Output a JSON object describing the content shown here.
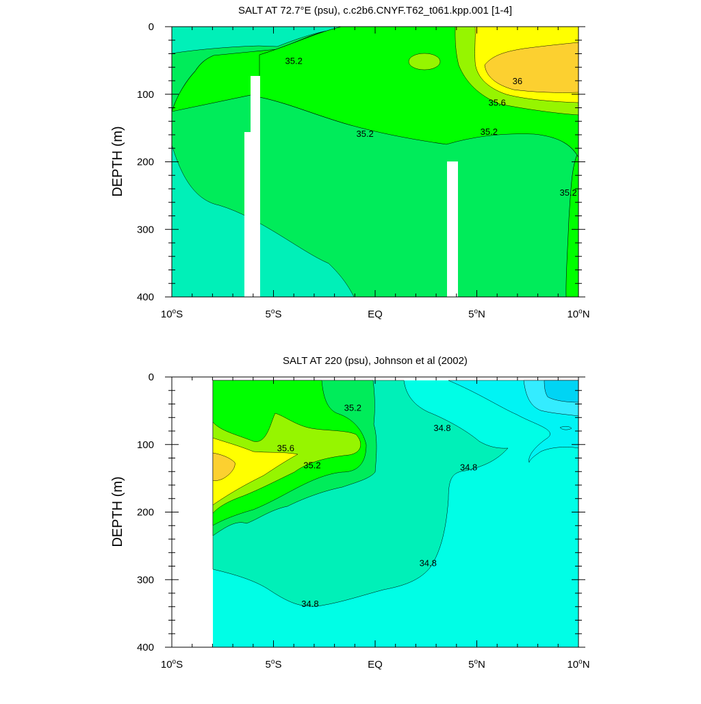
{
  "chart_data": [
    {
      "type": "contour",
      "title": "SALT AT  72.7°E (psu), c.c2b6.CNYF.T62_t061.kpp.001 [1-4]",
      "ylabel": "DEPTH (m)",
      "xlim": [
        -10,
        10
      ],
      "ylim": [
        400,
        0
      ],
      "x_ticks": [
        -10,
        -5,
        0,
        5,
        10
      ],
      "x_tick_labels": [
        "10°S",
        "5°S",
        "EQ",
        "5°N",
        "10°N"
      ],
      "y_ticks": [
        0,
        100,
        200,
        300,
        400
      ],
      "y_tick_labels": [
        "0",
        "100",
        "200",
        "300",
        "400"
      ],
      "contour_labels": [
        {
          "text": "35.2",
          "x": -4.0,
          "depth": 50
        },
        {
          "text": "36",
          "x": 7.0,
          "depth": 80
        },
        {
          "text": "35.6",
          "x": 6.0,
          "depth": 112
        },
        {
          "text": "35.2",
          "x": -0.5,
          "depth": 158
        },
        {
          "text": "35.2",
          "x": 5.6,
          "depth": 155
        },
        {
          "text": "35.2",
          "x": 9.5,
          "depth": 245
        }
      ]
    },
    {
      "type": "contour",
      "title": "SALT AT 220 (psu), Johnson et al (2002)",
      "ylabel": "DEPTH (m)",
      "xlim": [
        -10,
        10
      ],
      "ylim": [
        400,
        0
      ],
      "x_ticks": [
        -10,
        -5,
        0,
        5,
        10
      ],
      "x_tick_labels": [
        "10°S",
        "5°S",
        "EQ",
        "5°N",
        "10°N"
      ],
      "y_ticks": [
        0,
        100,
        200,
        300,
        400
      ],
      "y_tick_labels": [
        "0",
        "100",
        "200",
        "300",
        "400"
      ],
      "contour_labels": [
        {
          "text": "35.2",
          "x": -1.1,
          "depth": 45
        },
        {
          "text": "34.8",
          "x": 3.3,
          "depth": 75
        },
        {
          "text": "35.6",
          "x": -4.4,
          "depth": 105
        },
        {
          "text": "35.2",
          "x": -3.1,
          "depth": 130
        },
        {
          "text": "34.8",
          "x": 4.6,
          "depth": 133
        },
        {
          "text": "34.8",
          "x": 2.6,
          "depth": 275
        },
        {
          "text": "34.8",
          "x": -3.2,
          "depth": 335
        }
      ]
    }
  ],
  "colors": {
    "lt_34_8": "#00fee6",
    "s34_8_35_0": "#00f0b8",
    "s35_0_35_2": "#00ec5a",
    "s35_2_35_4": "#00ff00",
    "s35_4_35_6": "#96f500",
    "s35_6_35_8": "#ffff00",
    "s35_8_36_0": "#fcd030",
    "obs_fresh_1": "#00f4f4",
    "obs_fresh_2": "#34ecff",
    "obs_fresh_3": "#00d4f4",
    "mask": "#ffffff"
  }
}
